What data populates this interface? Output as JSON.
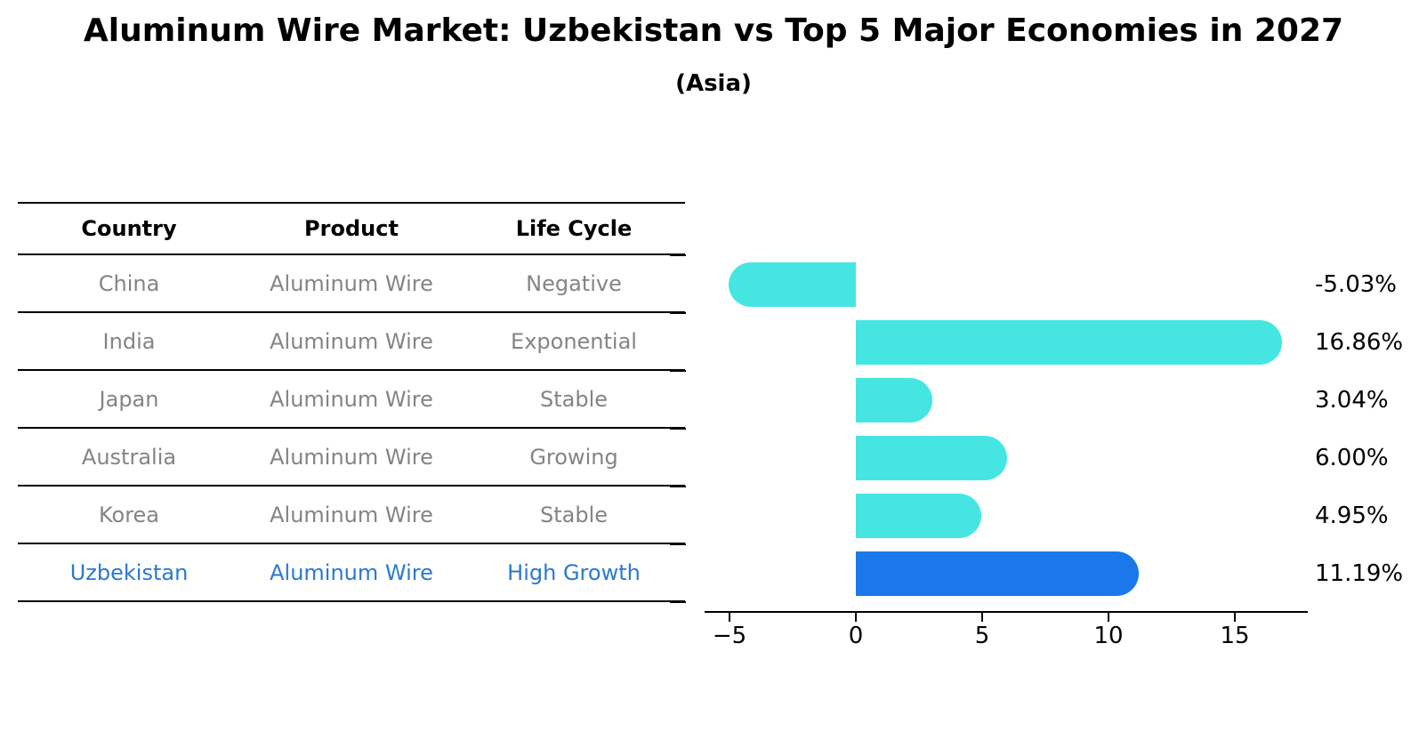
{
  "title": "Aluminum Wire Market: Uzbekistan vs Top 5 Major Economies in 2027",
  "subtitle": "(Asia)",
  "table": {
    "headers": [
      "Country",
      "Product",
      "Life Cycle"
    ],
    "rows": [
      {
        "country": "China",
        "product": "Aluminum Wire",
        "life_cycle": "Negative",
        "highlight": false
      },
      {
        "country": "India",
        "product": "Aluminum Wire",
        "life_cycle": "Exponential",
        "highlight": false
      },
      {
        "country": "Japan",
        "product": "Aluminum Wire",
        "life_cycle": "Stable",
        "highlight": false
      },
      {
        "country": "Australia",
        "product": "Aluminum Wire",
        "life_cycle": "Growing",
        "highlight": false
      },
      {
        "country": "Korea",
        "product": "Aluminum Wire",
        "life_cycle": "Stable",
        "highlight": false
      },
      {
        "country": "Uzbekistan",
        "product": "Aluminum Wire",
        "life_cycle": "High Growth",
        "highlight": true
      }
    ]
  },
  "chart_data": {
    "type": "bar",
    "orientation": "horizontal",
    "title": "Aluminum Wire Market: Uzbekistan vs Top 5 Major Economies in 2027",
    "subtitle": "(Asia)",
    "categories": [
      "China",
      "India",
      "Japan",
      "Australia",
      "Korea",
      "Uzbekistan"
    ],
    "values": [
      -5.03,
      16.86,
      3.04,
      6.0,
      4.95,
      11.19
    ],
    "bar_labels": [
      "-5.03%",
      "16.86%",
      "3.04%",
      "6.00%",
      "4.95%",
      "11.19%"
    ],
    "xlabel": "",
    "ylabel": "",
    "xlim": [
      -6.1,
      17.9
    ],
    "x_ticks": [
      -5,
      0,
      5,
      10,
      15
    ],
    "x_tick_labels": [
      "−5",
      "0",
      "5",
      "10",
      "15"
    ],
    "grid": false,
    "legend": "none",
    "highlight_index": 5
  },
  "colors": {
    "bar_default": "#45E6E1",
    "bar_highlight": "#1A78EB",
    "highlight_text": "#2A79CE",
    "table_text": "#848484",
    "axis_and_lines": "#000000"
  }
}
